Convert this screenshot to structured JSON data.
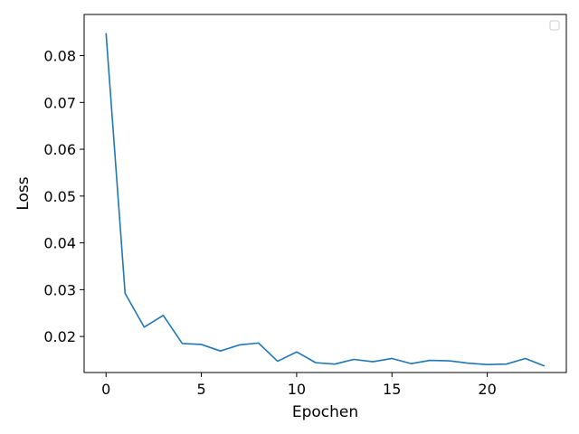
{
  "chart_data": {
    "type": "line",
    "title": "",
    "xlabel": "Epochen",
    "ylabel": "Loss",
    "xlim": [
      -1.15,
      24.15
    ],
    "ylim": [
      0.0123,
      0.0888
    ],
    "grid": false,
    "legend": "top-right",
    "legend_entries": [],
    "x_ticks": [
      0,
      5,
      10,
      15,
      20
    ],
    "x_tick_labels": [
      "0",
      "5",
      "10",
      "15",
      "20"
    ],
    "y_ticks": [
      0.02,
      0.03,
      0.04,
      0.05,
      0.06,
      0.07,
      0.08
    ],
    "y_tick_labels": [
      "0.02",
      "0.03",
      "0.04",
      "0.05",
      "0.06",
      "0.07",
      "0.08"
    ],
    "series": [
      {
        "color": "#1f77b4",
        "x": [
          0,
          1,
          2,
          3,
          4,
          5,
          6,
          7,
          8,
          9,
          10,
          11,
          12,
          13,
          14,
          15,
          16,
          17,
          18,
          19,
          20,
          21,
          22,
          23
        ],
        "values": [
          0.0848,
          0.0292,
          0.022,
          0.0245,
          0.0185,
          0.0183,
          0.0169,
          0.0182,
          0.0186,
          0.0147,
          0.0167,
          0.0144,
          0.0141,
          0.0151,
          0.0146,
          0.0153,
          0.0142,
          0.0149,
          0.0148,
          0.0143,
          0.014,
          0.0141,
          0.0153,
          0.0137
        ]
      }
    ]
  }
}
